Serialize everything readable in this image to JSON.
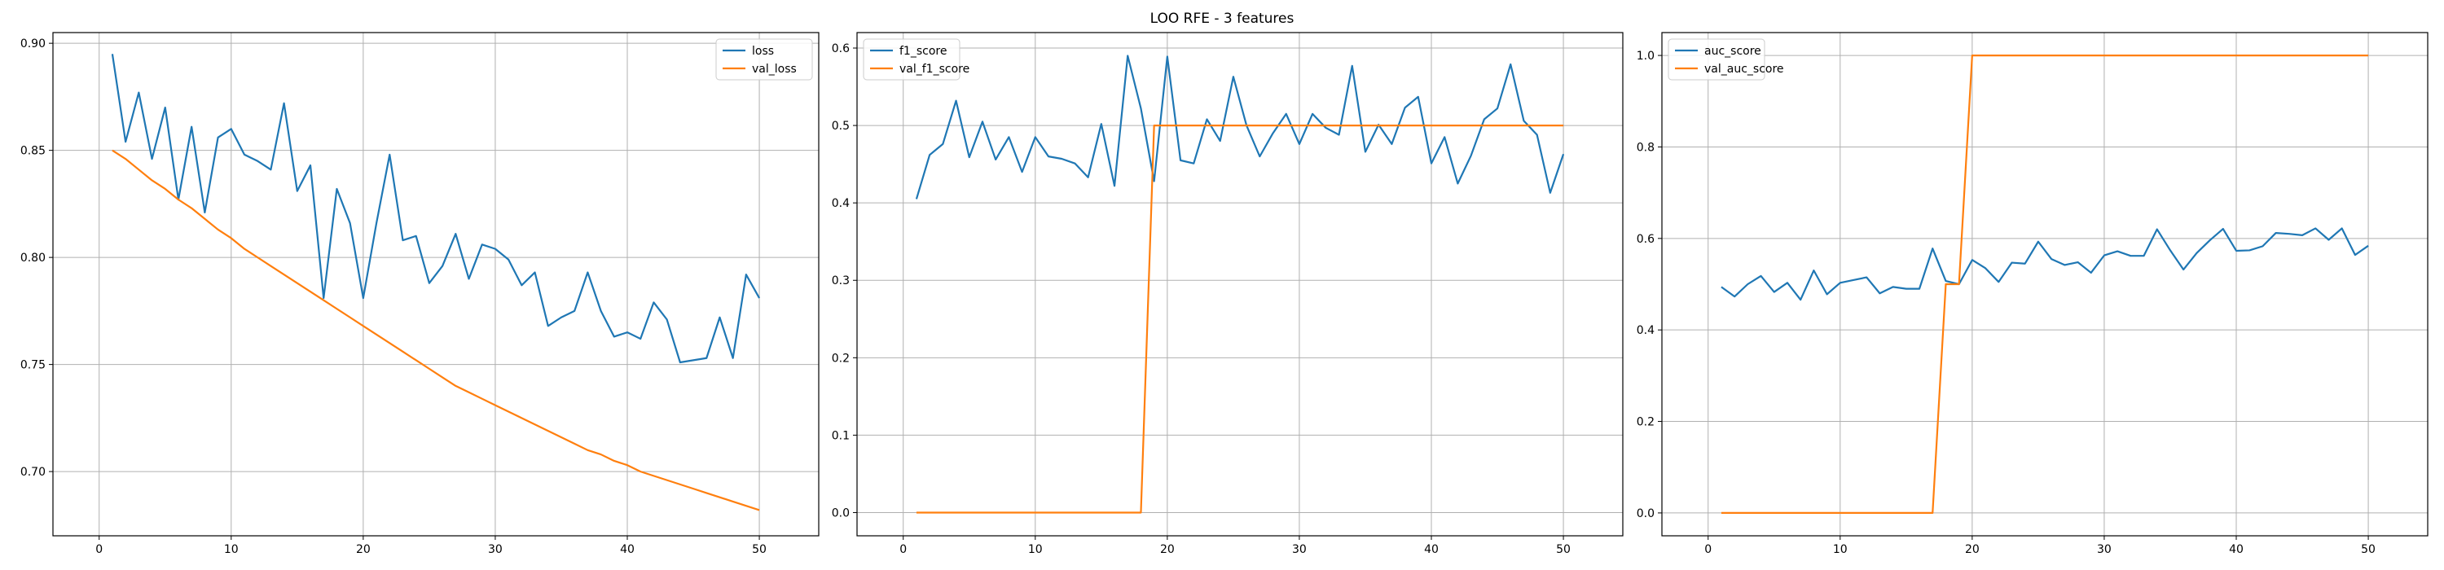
{
  "figure": {
    "title": "LOO RFE - 3 features"
  },
  "chart_data": [
    {
      "type": "line",
      "title": "",
      "xlabel": "",
      "ylabel": "",
      "xlim": [
        -3.5,
        54.5
      ],
      "ylim": [
        0.67,
        0.905
      ],
      "xticks": [
        0,
        10,
        20,
        30,
        40,
        50
      ],
      "yticks": [
        0.7,
        0.75,
        0.8,
        0.85,
        0.9
      ],
      "ytick_labels": [
        "0.70",
        "0.75",
        "0.80",
        "0.85",
        "0.90"
      ],
      "grid": true,
      "legend": "top-right",
      "x": [
        1,
        2,
        3,
        4,
        5,
        6,
        7,
        8,
        9,
        10,
        11,
        12,
        13,
        14,
        15,
        16,
        17,
        18,
        19,
        20,
        21,
        22,
        23,
        24,
        25,
        26,
        27,
        28,
        29,
        30,
        31,
        32,
        33,
        34,
        35,
        36,
        37,
        38,
        39,
        40,
        41,
        42,
        43,
        44,
        45,
        46,
        47,
        48,
        49,
        50
      ],
      "series": [
        {
          "name": "loss",
          "color": "#1f77b4",
          "values": [
            0.895,
            0.854,
            0.877,
            0.846,
            0.87,
            0.827,
            0.861,
            0.821,
            0.856,
            0.86,
            0.848,
            0.845,
            0.841,
            0.872,
            0.831,
            0.843,
            0.781,
            0.832,
            0.816,
            0.781,
            0.816,
            0.848,
            0.808,
            0.81,
            0.788,
            0.796,
            0.811,
            0.79,
            0.806,
            0.804,
            0.799,
            0.787,
            0.793,
            0.768,
            0.772,
            0.775,
            0.793,
            0.775,
            0.763,
            0.765,
            0.762,
            0.779,
            0.771,
            0.751,
            0.752,
            0.753,
            0.772,
            0.753,
            0.792,
            0.781
          ]
        },
        {
          "name": "val_loss",
          "color": "#ff7f0e",
          "values": [
            0.85,
            0.846,
            0.841,
            0.836,
            0.832,
            0.827,
            0.823,
            0.818,
            0.813,
            0.809,
            0.804,
            0.8,
            0.796,
            0.792,
            0.788,
            0.784,
            0.78,
            0.776,
            0.772,
            0.768,
            0.764,
            0.76,
            0.756,
            0.752,
            0.748,
            0.744,
            0.74,
            0.737,
            0.734,
            0.731,
            0.728,
            0.725,
            0.722,
            0.719,
            0.716,
            0.713,
            0.71,
            0.708,
            0.705,
            0.703,
            0.7,
            0.698,
            0.696,
            0.694,
            0.692,
            0.69,
            0.688,
            0.686,
            0.684,
            0.682
          ]
        }
      ]
    },
    {
      "type": "line",
      "title": "",
      "xlabel": "",
      "ylabel": "",
      "xlim": [
        -3.5,
        54.5
      ],
      "ylim": [
        -0.03,
        0.62
      ],
      "xticks": [
        0,
        10,
        20,
        30,
        40,
        50
      ],
      "yticks": [
        0.0,
        0.1,
        0.2,
        0.3,
        0.4,
        0.5,
        0.6
      ],
      "ytick_labels": [
        "0.0",
        "0.1",
        "0.2",
        "0.3",
        "0.4",
        "0.5",
        "0.6"
      ],
      "grid": true,
      "legend": "top-left",
      "x": [
        1,
        2,
        3,
        4,
        5,
        6,
        7,
        8,
        9,
        10,
        11,
        12,
        13,
        14,
        15,
        16,
        17,
        18,
        19,
        20,
        21,
        22,
        23,
        24,
        25,
        26,
        27,
        28,
        29,
        30,
        31,
        32,
        33,
        34,
        35,
        36,
        37,
        38,
        39,
        40,
        41,
        42,
        43,
        44,
        45,
        46,
        47,
        48,
        49,
        50
      ],
      "series": [
        {
          "name": "f1_score",
          "color": "#1f77b4",
          "values": [
            0.405,
            0.462,
            0.476,
            0.532,
            0.459,
            0.505,
            0.456,
            0.485,
            0.44,
            0.485,
            0.46,
            0.457,
            0.451,
            0.433,
            0.502,
            0.422,
            0.59,
            0.522,
            0.428,
            0.589,
            0.455,
            0.451,
            0.508,
            0.48,
            0.563,
            0.5,
            0.46,
            0.49,
            0.515,
            0.476,
            0.515,
            0.497,
            0.488,
            0.577,
            0.466,
            0.501,
            0.476,
            0.523,
            0.537,
            0.451,
            0.485,
            0.425,
            0.461,
            0.508,
            0.522,
            0.579,
            0.506,
            0.488,
            0.413,
            0.463
          ]
        },
        {
          "name": "val_f1_score",
          "color": "#ff7f0e",
          "values": [
            0,
            0,
            0,
            0,
            0,
            0,
            0,
            0,
            0,
            0,
            0,
            0,
            0,
            0,
            0,
            0,
            0,
            0,
            0.5,
            0.5,
            0.5,
            0.5,
            0.5,
            0.5,
            0.5,
            0.5,
            0.5,
            0.5,
            0.5,
            0.5,
            0.5,
            0.5,
            0.5,
            0.5,
            0.5,
            0.5,
            0.5,
            0.5,
            0.5,
            0.5,
            0.5,
            0.5,
            0.5,
            0.5,
            0.5,
            0.5,
            0.5,
            0.5,
            0.5,
            0.5
          ]
        }
      ]
    },
    {
      "type": "line",
      "title": "",
      "xlabel": "",
      "ylabel": "",
      "xlim": [
        -3.5,
        54.5
      ],
      "ylim": [
        -0.05,
        1.05
      ],
      "xticks": [
        0,
        10,
        20,
        30,
        40,
        50
      ],
      "yticks": [
        0.0,
        0.2,
        0.4,
        0.6,
        0.8,
        1.0
      ],
      "ytick_labels": [
        "0.0",
        "0.2",
        "0.4",
        "0.6",
        "0.8",
        "1.0"
      ],
      "grid": true,
      "legend": "top-left",
      "x": [
        1,
        2,
        3,
        4,
        5,
        6,
        7,
        8,
        9,
        10,
        11,
        12,
        13,
        14,
        15,
        16,
        17,
        18,
        19,
        20,
        21,
        22,
        23,
        24,
        25,
        26,
        27,
        28,
        29,
        30,
        31,
        32,
        33,
        34,
        35,
        36,
        37,
        38,
        39,
        40,
        41,
        42,
        43,
        44,
        45,
        46,
        47,
        48,
        49,
        50
      ],
      "series": [
        {
          "name": "auc_score",
          "color": "#1f77b4",
          "values": [
            0.494,
            0.473,
            0.5,
            0.518,
            0.483,
            0.503,
            0.466,
            0.53,
            0.478,
            0.503,
            0.509,
            0.515,
            0.48,
            0.494,
            0.49,
            0.49,
            0.578,
            0.507,
            0.5,
            0.553,
            0.535,
            0.505,
            0.547,
            0.545,
            0.593,
            0.555,
            0.542,
            0.548,
            0.525,
            0.563,
            0.572,
            0.562,
            0.562,
            0.62,
            0.574,
            0.532,
            0.568,
            0.596,
            0.621,
            0.573,
            0.574,
            0.583,
            0.612,
            0.61,
            0.607,
            0.622,
            0.597,
            0.622,
            0.564,
            0.584
          ]
        },
        {
          "name": "val_auc_score",
          "color": "#ff7f0e",
          "values": [
            0,
            0,
            0,
            0,
            0,
            0,
            0,
            0,
            0,
            0,
            0,
            0,
            0,
            0,
            0,
            0,
            0,
            0.5,
            0.5,
            1.0,
            1.0,
            1.0,
            1.0,
            1.0,
            1.0,
            1.0,
            1.0,
            1.0,
            1.0,
            1.0,
            1.0,
            1.0,
            1.0,
            1.0,
            1.0,
            1.0,
            1.0,
            1.0,
            1.0,
            1.0,
            1.0,
            1.0,
            1.0,
            1.0,
            1.0,
            1.0,
            1.0,
            1.0,
            1.0,
            1.0
          ]
        }
      ]
    }
  ]
}
